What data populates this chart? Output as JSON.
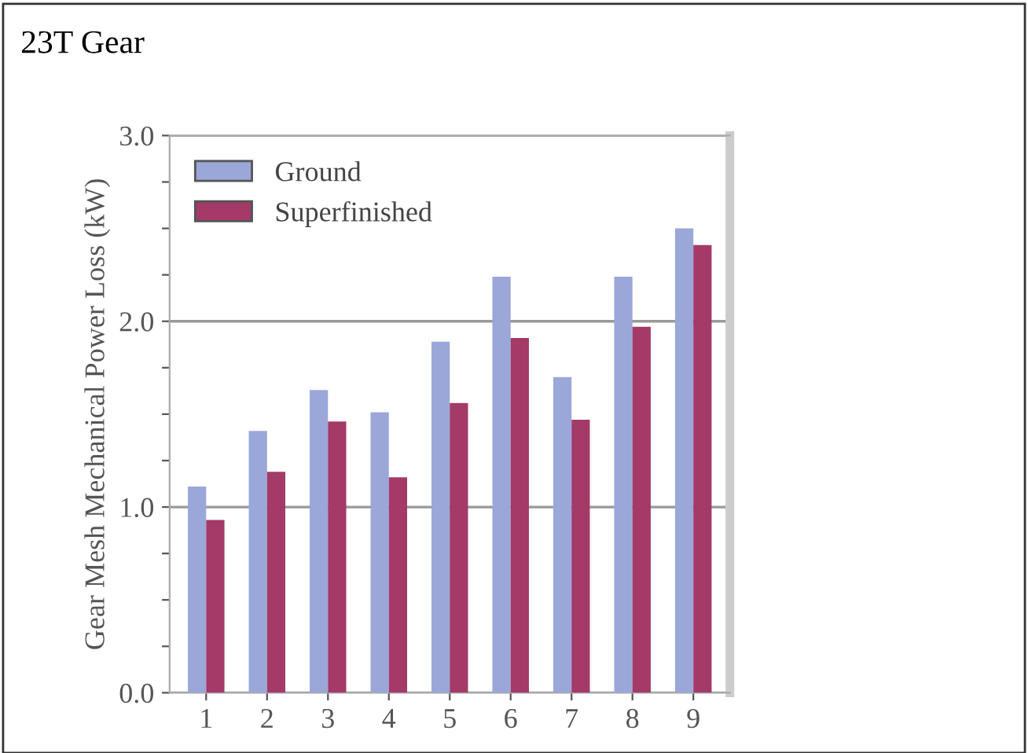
{
  "chart_data": {
    "type": "bar",
    "title": "23T Gear",
    "ylabel": "Gear Mesh Mechanical Power Loss (kW)",
    "categories": [
      "1",
      "2",
      "3",
      "4",
      "5",
      "6",
      "7",
      "8",
      "9"
    ],
    "series": [
      {
        "name": "Ground",
        "color": "#9ba7d9",
        "values": [
          1.11,
          1.41,
          1.63,
          1.51,
          1.89,
          2.24,
          1.7,
          2.24,
          2.5
        ]
      },
      {
        "name": "Superfinished",
        "color": "#a33a68",
        "values": [
          0.93,
          1.19,
          1.46,
          1.16,
          1.56,
          1.91,
          1.47,
          1.97,
          2.41
        ]
      }
    ],
    "ylim": [
      0,
      3
    ],
    "yticks": [
      {
        "value": 0,
        "label": "0.0"
      },
      {
        "value": 0.25,
        "label": null
      },
      {
        "value": 0.5,
        "label": null
      },
      {
        "value": 0.75,
        "label": null
      },
      {
        "value": 1,
        "label": "1.0"
      },
      {
        "value": 1.25,
        "label": null
      },
      {
        "value": 1.5,
        "label": null
      },
      {
        "value": 1.75,
        "label": null
      },
      {
        "value": 2,
        "label": "2.0"
      },
      {
        "value": 2.25,
        "label": null
      },
      {
        "value": 2.5,
        "label": null
      },
      {
        "value": 2.75,
        "label": null
      },
      {
        "value": 3,
        "label": "3.0"
      }
    ],
    "grid": "y",
    "legend": "top left"
  }
}
